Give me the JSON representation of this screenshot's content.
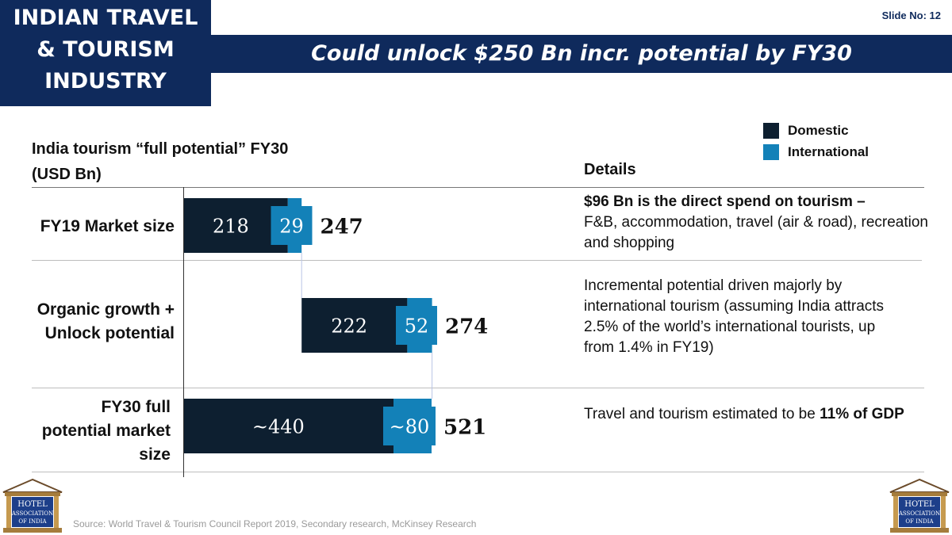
{
  "header": {
    "corner_title_lines": [
      "INDIAN TRAVEL",
      "& TOURISM",
      "INDUSTRY"
    ],
    "banner_title": "Could unlock $250 Bn incr. potential by FY30",
    "slide_no": "Slide No: 12"
  },
  "chart_title_lines": [
    "India tourism “full potential” FY30",
    "(USD Bn)"
  ],
  "details_title": "Details",
  "legend": [
    {
      "label": "Domestic",
      "color": "#0d1f30"
    },
    {
      "label": "International",
      "color": "#1381b8"
    }
  ],
  "chart_data": {
    "type": "bar",
    "orientation": "horizontal",
    "stacked": "waterfall",
    "categories": [
      "FY19 Market size",
      "Organic growth + Unlock potential",
      "FY30 full potential market size"
    ],
    "series": [
      {
        "name": "Domestic",
        "values": [
          218,
          222,
          440
        ],
        "labels": [
          "218",
          "222",
          "~440"
        ],
        "color": "#0d1f30"
      },
      {
        "name": "International",
        "values": [
          29,
          52,
          80
        ],
        "labels": [
          "29",
          "52",
          "~80"
        ],
        "color": "#1381b8"
      }
    ],
    "offsets": [
      0,
      247,
      0
    ],
    "totals": [
      "247",
      "274",
      "521"
    ],
    "xlim": [
      0,
      521
    ]
  },
  "row_labels": [
    [
      "FY19 Market size"
    ],
    [
      "Organic growth +",
      "Unlock potential"
    ],
    [
      "FY30 full",
      "potential market",
      "size"
    ]
  ],
  "details": {
    "fy19": {
      "bold": "$96 Bn is the direct spend on tourism –",
      "text": "F&B, accommodation, travel (air & road), recreation and shopping"
    },
    "organic": {
      "text": "Incremental potential driven majorly by international tourism (assuming India attracts 2.5% of the world’s international tourists, up from 1.4% in FY19)"
    },
    "fy30": {
      "text": "Travel and tourism estimated to be ",
      "bold": "11% of GDP"
    }
  },
  "logos": {
    "text_lines": [
      "HOTEL",
      "ASSOCIATION",
      "OF INDIA"
    ]
  },
  "source": "Source: World Travel & Tourism Council Report 2019, Secondary research, McKinsey Research"
}
